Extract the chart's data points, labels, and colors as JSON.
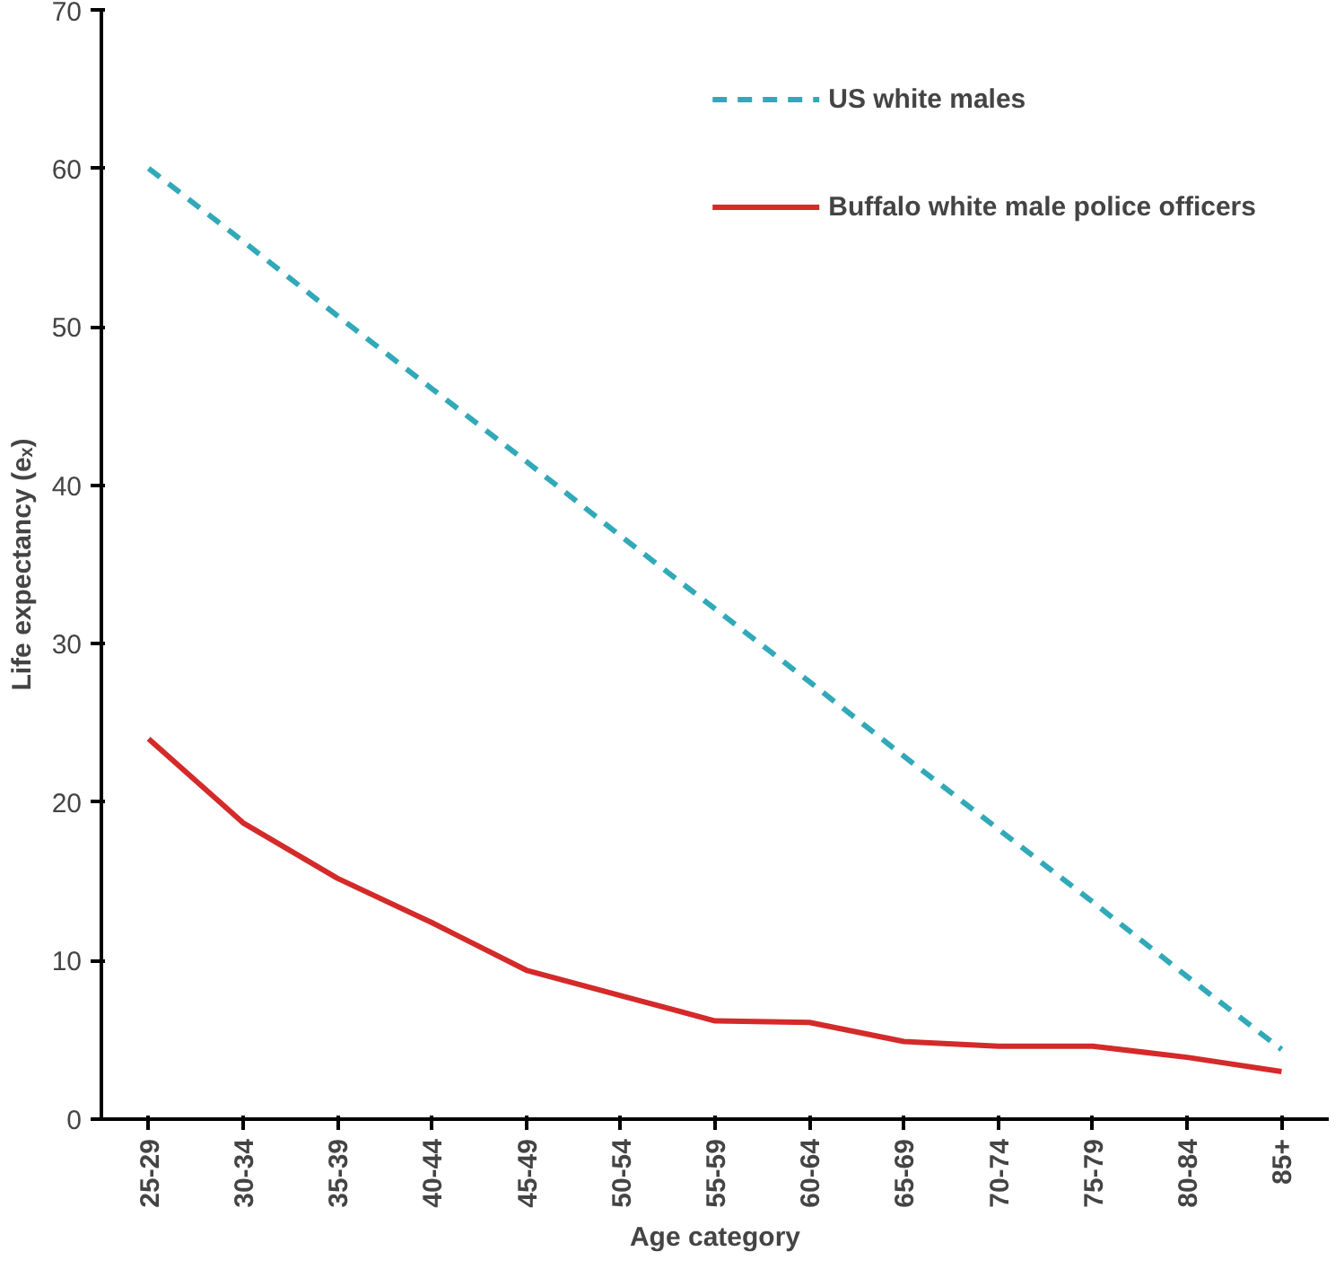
{
  "chart_data": {
    "type": "line",
    "xlabel": "Age category",
    "ylabel": "Life expectancy (eₓ)",
    "categories": [
      "25-29",
      "30-34",
      "35-39",
      "40-44",
      "45-49",
      "50-54",
      "55-59",
      "60-64",
      "65-69",
      "70-74",
      "75-79",
      "80-84",
      "85+"
    ],
    "ylim": [
      0,
      70
    ],
    "yticks": [
      0,
      10,
      20,
      30,
      40,
      50,
      60,
      70
    ],
    "grid": false,
    "legend": "top right",
    "marker": "none",
    "series": [
      {
        "name": "US white males",
        "color": "#31a9b8",
        "line_style": "dashed",
        "values": [
          60,
          55.4,
          50.7,
          46.1,
          41.5,
          36.8,
          32.2,
          27.6,
          22.9,
          18.3,
          13.7,
          9.0,
          4.4
        ]
      },
      {
        "name": "Buffalo white male police officers",
        "color": "#d42a2a",
        "line_style": "solid",
        "values": [
          24,
          18.7,
          15.2,
          12.4,
          9.4,
          7.8,
          6.2,
          6.1,
          4.9,
          4.6,
          4.6,
          3.9,
          3.0
        ]
      }
    ]
  }
}
